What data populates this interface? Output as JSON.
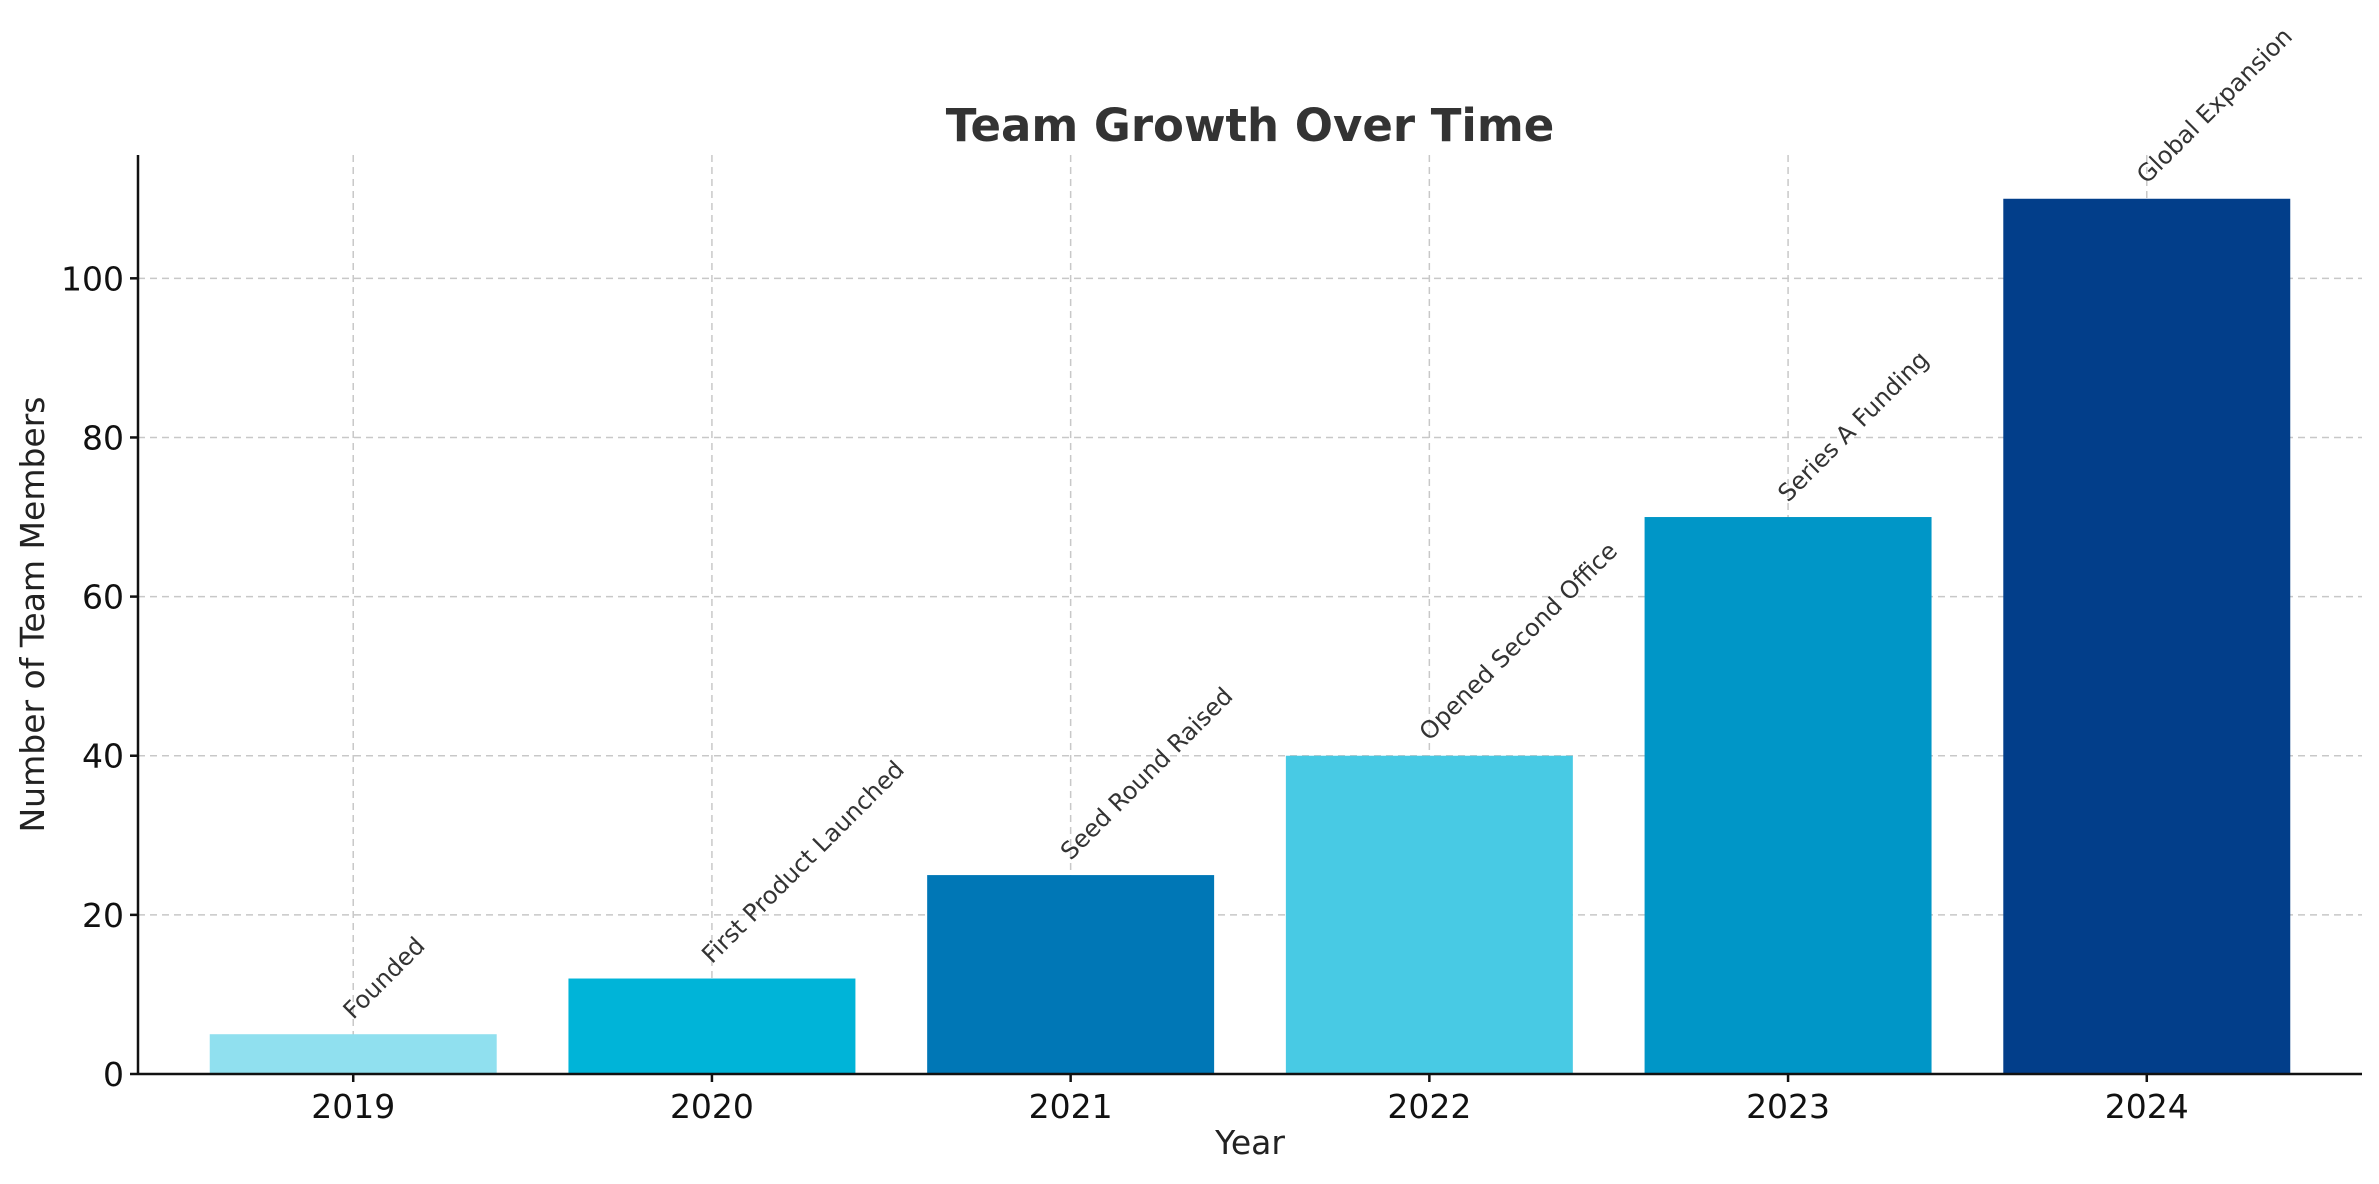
{
  "chart_data": {
    "type": "bar",
    "title": "Team Growth Over Time",
    "xlabel": "Year",
    "ylabel": "Number of Team Members",
    "categories": [
      "2019",
      "2020",
      "2021",
      "2022",
      "2023",
      "2024"
    ],
    "values": [
      5,
      12,
      25,
      40,
      70,
      110
    ],
    "annotations": [
      "Founded",
      "First Product Launched",
      "Seed Round Raised",
      "Opened Second Office",
      "Series A Funding",
      "Global Expansion"
    ],
    "colors": [
      "#90e0ef",
      "#00b4d8",
      "#0077b6",
      "#48cae4",
      "#0096c7",
      "#023e8a"
    ],
    "ylim": [
      0,
      115.5
    ],
    "yticks": [
      0,
      20,
      40,
      60,
      80,
      100
    ],
    "grid": true
  }
}
